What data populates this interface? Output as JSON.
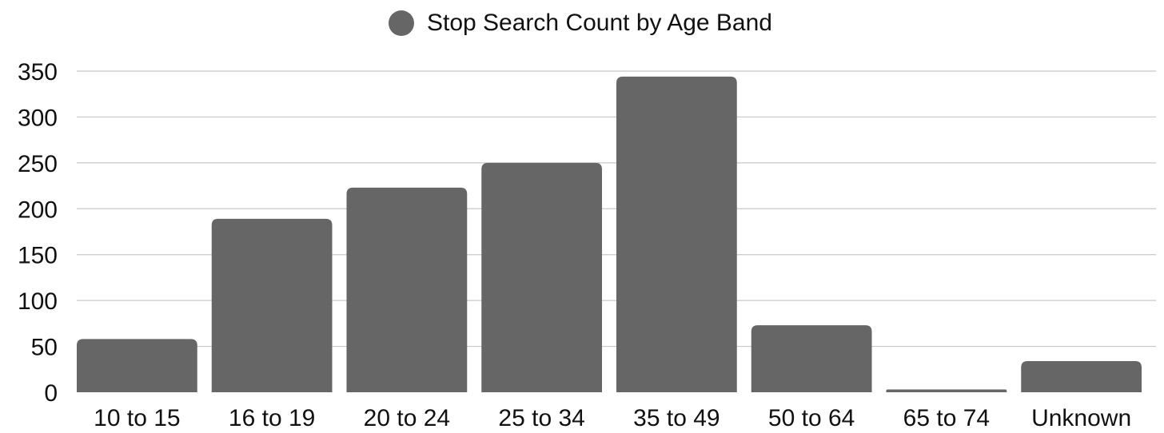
{
  "colors": {
    "bar": "#666666",
    "grid": "#c8c8c8",
    "text": "#111111",
    "background": "#ffffff"
  },
  "chart_data": {
    "type": "bar",
    "title": "",
    "xlabel": "",
    "ylabel": "",
    "legend_position": "top-center",
    "grid": true,
    "categories": [
      "10 to 15",
      "16 to 19",
      "20 to 24",
      "25 to 34",
      "35 to 49",
      "50 to 64",
      "65 to 74",
      "Unknown"
    ],
    "series": [
      {
        "name": "Stop Search Count by Age Band",
        "values": [
          58,
          189,
          223,
          250,
          344,
          73,
          3,
          34
        ]
      }
    ],
    "ylim": [
      0,
      350
    ],
    "yticks": [
      0,
      50,
      100,
      150,
      200,
      250,
      300,
      350
    ],
    "ytick_labels": [
      "0",
      "50",
      "100",
      "150",
      "200",
      "250",
      "300",
      "350"
    ]
  }
}
